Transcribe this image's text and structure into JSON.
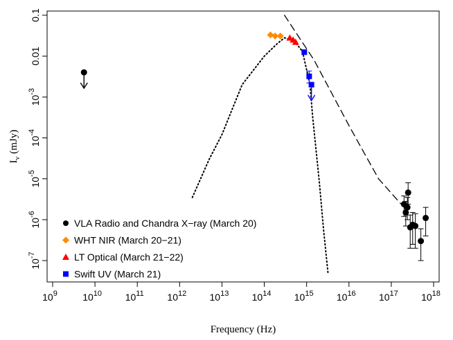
{
  "chart_data": {
    "type": "scatter",
    "title": "",
    "xlabel": "Frequency (Hz)",
    "ylabel": "I_ν (mJy)",
    "xscale": "log",
    "yscale": "log",
    "xlim": [
      1000000000.0,
      1e+18
    ],
    "ylim": [
      3e-08,
      0.1
    ],
    "grid": false,
    "legend_position": "bottom-left",
    "x_ticks": [
      {
        "value": 1000000000.0,
        "base": "10",
        "exp": "9"
      },
      {
        "value": 10000000000.0,
        "base": "10",
        "exp": "10"
      },
      {
        "value": 100000000000.0,
        "base": "10",
        "exp": "11"
      },
      {
        "value": 1000000000000.0,
        "base": "10",
        "exp": "12"
      },
      {
        "value": 10000000000000.0,
        "base": "10",
        "exp": "13"
      },
      {
        "value": 100000000000000.0,
        "base": "10",
        "exp": "14"
      },
      {
        "value": 1000000000000000.0,
        "base": "10",
        "exp": "15"
      },
      {
        "value": 1e+16,
        "base": "10",
        "exp": "16"
      },
      {
        "value": 1e+17,
        "base": "10",
        "exp": "17"
      },
      {
        "value": 1e+18,
        "base": "10",
        "exp": "18"
      }
    ],
    "y_ticks": [
      {
        "value": 1e-07,
        "base": "10",
        "exp": "-7"
      },
      {
        "value": 1e-06,
        "base": "10",
        "exp": "-6"
      },
      {
        "value": 1e-05,
        "base": "10",
        "exp": "-5"
      },
      {
        "value": 0.0001,
        "base": "10",
        "exp": "-4"
      },
      {
        "value": 0.001,
        "base": "10",
        "exp": "-3"
      },
      {
        "value": 0.01,
        "text": "0.01"
      },
      {
        "value": 0.1,
        "text": "0.1"
      }
    ],
    "series": [
      {
        "name": "VLA Radio and Chandra X−ray (March 20)",
        "color": "#000000",
        "marker": "circle",
        "points": [
          {
            "x": 5500000000.0,
            "y": 0.004,
            "upper_limit": true
          },
          {
            "x": 2e+17,
            "y": 2.4e-06,
            "ylo": 1.2e-06,
            "yhi": 3.8e-06
          },
          {
            "x": 2.2e+17,
            "y": 1.5e-06,
            "ylo": 7e-07,
            "yhi": 2.8e-06
          },
          {
            "x": 2.4e+17,
            "y": 2e-06,
            "ylo": 1e-06,
            "yhi": 3.5e-06
          },
          {
            "x": 2.5e+17,
            "y": 4.6e-06,
            "ylo": 2.4e-06,
            "yhi": 8e-06
          },
          {
            "x": 2.8e+17,
            "y": 6.5e-07,
            "ylo": 2e-07,
            "yhi": 1.3e-06
          },
          {
            "x": 3.2e+17,
            "y": 7.5e-07,
            "ylo": 2.5e-07,
            "yhi": 1.5e-06
          },
          {
            "x": 3.7e+17,
            "y": 7e-07,
            "ylo": 2e-07,
            "yhi": 1.4e-06
          },
          {
            "x": 5e+17,
            "y": 3e-07,
            "ylo": 1e-07,
            "yhi": 6e-07
          },
          {
            "x": 6.5e+17,
            "y": 1.1e-06,
            "ylo": 4e-07,
            "yhi": 2e-06
          }
        ]
      },
      {
        "name": "WHT NIR (March 20−21)",
        "color": "#ff8c00",
        "marker": "diamond",
        "points": [
          {
            "x": 140000000000000.0,
            "y": 0.033
          },
          {
            "x": 180000000000000.0,
            "y": 0.031
          },
          {
            "x": 240000000000000.0,
            "y": 0.031
          }
        ]
      },
      {
        "name": "LT Optical (March 21−22)",
        "color": "#ff0000",
        "marker": "triangle",
        "points": [
          {
            "x": 400000000000000.0,
            "y": 0.028
          },
          {
            "x": 480000000000000.0,
            "y": 0.025
          },
          {
            "x": 550000000000000.0,
            "y": 0.022
          }
        ]
      },
      {
        "name": "Swift UV (March 21)",
        "color": "#0000ff",
        "marker": "square",
        "points": [
          {
            "x": 880000000000000.0,
            "y": 0.0125,
            "ylo": 0.011,
            "yhi": 0.014
          },
          {
            "x": 1150000000000000.0,
            "y": 0.0032,
            "ylo": 0.0022,
            "yhi": 0.0043
          },
          {
            "x": 1300000000000000.0,
            "y": 0.002,
            "upper_limit": true
          }
        ]
      }
    ],
    "curves": [
      {
        "style": "dotted",
        "points": [
          [
            2000000000000.0,
            3.5e-06
          ],
          [
            5000000000000.0,
            3e-05
          ],
          [
            10000000000000.0,
            0.00012
          ],
          [
            30000000000000.0,
            0.002
          ],
          [
            100000000000000.0,
            0.01
          ],
          [
            200000000000000.0,
            0.02
          ],
          [
            300000000000000.0,
            0.028
          ],
          [
            500000000000000.0,
            0.024
          ],
          [
            800000000000000.0,
            0.013
          ],
          [
            1200000000000000.0,
            0.002
          ],
          [
            1400000000000000.0,
            0.0003
          ],
          [
            1600000000000000.0,
            8e-05
          ],
          [
            2000000000000000.0,
            8e-06
          ],
          [
            2500000000000000.0,
            6e-07
          ],
          [
            3200000000000000.0,
            5e-08
          ]
        ]
      },
      {
        "style": "dashed",
        "points": [
          [
            300000000000000.0,
            0.1
          ],
          [
            1500000000000000.0,
            0.008
          ],
          [
            1e+16,
            0.0002
          ],
          [
            5e+16,
            1e-05
          ],
          [
            2e+17,
            2e-06
          ]
        ]
      }
    ]
  }
}
